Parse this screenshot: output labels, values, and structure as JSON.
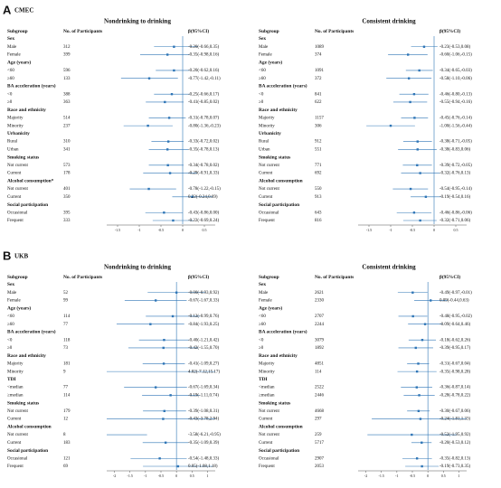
{
  "panels": [
    {
      "label": "A",
      "title": "CMEC"
    },
    {
      "label": "B",
      "title": "UKB"
    }
  ],
  "chart_data": [
    {
      "type": "forest",
      "title": "Nondrinking to drinking",
      "columns": [
        "Subgroup",
        "No. of Participants",
        "β(95%CI)"
      ],
      "color": "#2e75b6",
      "xlim": [
        -1.75,
        0.75
      ],
      "xticks": [
        -1.5,
        -1,
        -0.5,
        0,
        0.5
      ],
      "refline": 0,
      "groups": [
        {
          "name": "Sex",
          "categories": [
            "Male",
            "Female"
          ],
          "n": [
            312,
            399
          ],
          "estimate": [
            -0.2,
            -0.35
          ],
          "lower": [
            -0.66,
            -0.98
          ],
          "upper": [
            0.35,
            0.16
          ],
          "value_labels": [
            "-0.20(-0.66,0.35)",
            "-0.35(-0.98,0.16)"
          ]
        },
        {
          "name": "Age (years)",
          "categories": [
            "<60",
            "≥60"
          ],
          "n": [
            596,
            133
          ],
          "estimate": [
            -0.2,
            -0.77
          ],
          "lower": [
            -0.62,
            -1.42
          ],
          "upper": [
            0.16,
            -0.11
          ],
          "value_labels": [
            "-0.20(-0.62,0.16)",
            "-0.77(-1.42,-0.11)"
          ]
        },
        {
          "name": "BA acceleration (years)",
          "categories": [
            "<0",
            "≥0"
          ],
          "n": [
            388,
            363
          ],
          "estimate": [
            -0.25,
            -0.41
          ],
          "lower": [
            -0.66,
            -0.85
          ],
          "upper": [
            0.17,
            0.02
          ],
          "value_labels": [
            "-0.25(-0.66,0.17)",
            "-0.41(-0.85,0.02)"
          ]
        },
        {
          "name": "Race and ethnicity",
          "categories": [
            "Majority",
            "Minority"
          ],
          "n": [
            514,
            237
          ],
          "estimate": [
            -0.31,
            -0.8
          ],
          "lower": [
            -0.78,
            -1.36
          ],
          "upper": [
            0.07,
            -0.23
          ],
          "value_labels": [
            "-0.31(-0.78,0.07)",
            "-0.80(-1.36,-0.23)"
          ]
        },
        {
          "name": "Urbanicity",
          "categories": [
            "Rural",
            "Urban"
          ],
          "n": [
            310,
            341
          ],
          "estimate": [
            -0.33,
            -0.35
          ],
          "lower": [
            -0.72,
            -0.78
          ],
          "upper": [
            0.02,
            0.13
          ],
          "value_labels": [
            "-0.33(-0.72,0.02)",
            "-0.35(-0.78,0.13)"
          ]
        },
        {
          "name": "Smoking status",
          "categories": [
            "Not current",
            "Current"
          ],
          "n": [
            573,
            178
          ],
          "estimate": [
            -0.34,
            -0.29
          ],
          "lower": [
            -0.78,
            -0.91
          ],
          "upper": [
            0.02,
            0.33
          ],
          "value_labels": [
            "-0.34(-0.78,0.02)",
            "-0.29(-0.91,0.33)"
          ]
        },
        {
          "name": "Alcohol consumption*",
          "categories": [
            "Not current",
            "Current"
          ],
          "n": [
            401,
            350
          ],
          "estimate": [
            -0.78,
            0.22
          ],
          "lower": [
            -1.22,
            -0.24
          ],
          "upper": [
            -0.15,
            0.69
          ],
          "value_labels": [
            "-0.78(-1.22,-0.15)",
            "0.22(-0.24,0.69)"
          ]
        },
        {
          "name": "Social participation",
          "categories": [
            "Occasional",
            "Frequent"
          ],
          "n": [
            395,
            333
          ],
          "estimate": [
            -0.43,
            -0.22
          ],
          "lower": [
            -0.86,
            -0.69
          ],
          "upper": [
            0.0,
            0.24
          ],
          "value_labels": [
            "-0.43(-0.86,0.00)",
            "-0.22(-0.69,0.24)"
          ]
        }
      ]
    },
    {
      "type": "forest",
      "title": "Consistent drinking",
      "columns": [
        "Subgroup",
        "No. of Participants",
        "β(95%CI)"
      ],
      "color": "#2e75b6",
      "xlim": [
        -1.75,
        0.75
      ],
      "xticks": [
        -1.5,
        -1,
        -0.5,
        0,
        0.5
      ],
      "refline": 0,
      "groups": [
        {
          "name": "Sex",
          "categories": [
            "Male",
            "Female"
          ],
          "n": [
            1089,
            374
          ],
          "estimate": [
            -0.23,
            -0.6
          ],
          "lower": [
            -0.53,
            -1.06
          ],
          "upper": [
            0.08,
            -0.15
          ],
          "value_labels": [
            "-0.23(-0.53,0.08)",
            "-0.60(-1.06,-0.15)"
          ]
        },
        {
          "name": "Age (years)",
          "categories": [
            "<60",
            "≥60"
          ],
          "n": [
            1091,
            372
          ],
          "estimate": [
            -0.34,
            -0.58
          ],
          "lower": [
            -0.65,
            -1.1
          ],
          "upper": [
            -0.03,
            -0.06
          ],
          "value_labels": [
            "-0.34(-0.65,-0.03)",
            "-0.58(-1.10,-0.06)"
          ]
        },
        {
          "name": "BA acceleration (years)",
          "categories": [
            "<0",
            "≥0"
          ],
          "n": [
            841,
            622
          ],
          "estimate": [
            -0.46,
            -0.55
          ],
          "lower": [
            -0.8,
            -0.94
          ],
          "upper": [
            -0.13,
            -0.16
          ],
          "value_labels": [
            "-0.46(-0.80,-0.13)",
            "-0.55(-0.94,-0.16)"
          ]
        },
        {
          "name": "Race and ethnicity",
          "categories": [
            "Majority",
            "Minority"
          ],
          "n": [
            1157,
            306
          ],
          "estimate": [
            -0.45,
            -1.0
          ],
          "lower": [
            -0.76,
            -1.56
          ],
          "upper": [
            -0.14,
            -0.44
          ],
          "value_labels": [
            "-0.45(-0.76,-0.14)",
            "-1.00(-1.56,-0.44)"
          ]
        },
        {
          "name": "Urbanicity",
          "categories": [
            "Rural",
            "Urban"
          ],
          "n": [
            912,
            551
          ],
          "estimate": [
            -0.38,
            -0.38
          ],
          "lower": [
            -0.71,
            -0.83
          ],
          "upper": [
            -0.05,
            0.06
          ],
          "value_labels": [
            "-0.38(-0.71,-0.05)",
            "-0.38(-0.83,0.06)"
          ]
        },
        {
          "name": "Smoking status",
          "categories": [
            "Not current",
            "Current"
          ],
          "n": [
            771,
            692
          ],
          "estimate": [
            -0.39,
            -0.32
          ],
          "lower": [
            -0.72,
            -0.76
          ],
          "upper": [
            -0.05,
            0.13
          ],
          "value_labels": [
            "-0.39(-0.72,-0.05)",
            "-0.32(-0.76,0.13)"
          ]
        },
        {
          "name": "Alcohol consumption",
          "categories": [
            "Not current",
            "Current"
          ],
          "n": [
            550,
            913
          ],
          "estimate": [
            -0.54,
            -0.19
          ],
          "lower": [
            -0.95,
            -0.54
          ],
          "upper": [
            -0.14,
            0.16
          ],
          "value_labels": [
            "-0.54(-0.95,-0.14)",
            "-0.19(-0.54,0.16)"
          ]
        },
        {
          "name": "Social participation",
          "categories": [
            "Occasional",
            "Frequent"
          ],
          "n": [
            643,
            816
          ],
          "estimate": [
            -0.46,
            -0.32
          ],
          "lower": [
            -0.86,
            -0.71
          ],
          "upper": [
            -0.06,
            0.06
          ],
          "value_labels": [
            "-0.46(-0.86,-0.06)",
            "-0.32(-0.71,0.06)"
          ]
        }
      ]
    },
    {
      "type": "forest",
      "title": "Nondrinking to drinking",
      "columns": [
        "Subgroup",
        "No. of Participants",
        "β(95%CI)"
      ],
      "color": "#2e75b6",
      "xlim": [
        -2.25,
        1.25
      ],
      "xticks": [
        -2,
        -1.5,
        -1,
        -0.5,
        0,
        0.5,
        1
      ],
      "refline": 0,
      "groups": [
        {
          "name": "Sex",
          "categories": [
            "Male",
            "Female"
          ],
          "n": [
            52,
            99
          ],
          "estimate": [
            -0.0,
            -0.67
          ],
          "lower": [
            -0.93,
            -1.67
          ],
          "upper": [
            0.92,
            0.33
          ],
          "value_labels": [
            "-0.00(-0.93,0.92)",
            "-0.67(-1.67,0.33)"
          ]
        },
        {
          "name": "Age (years)",
          "categories": [
            "<60",
            "≥60"
          ],
          "n": [
            114,
            77
          ],
          "estimate": [
            -0.12,
            -0.84
          ],
          "lower": [
            -0.99,
            -1.93
          ],
          "upper": [
            0.76,
            0.25
          ],
          "value_labels": [
            "-0.12(-0.99,0.76)",
            "-0.84(-1.93,0.25)"
          ]
        },
        {
          "name": "BA acceleration (years)",
          "categories": [
            "<0",
            "≥0"
          ],
          "n": [
            118,
            73
          ],
          "estimate": [
            -0.4,
            -0.42
          ],
          "lower": [
            -1.21,
            -1.55
          ],
          "upper": [
            0.42,
            0.7
          ],
          "value_labels": [
            "-0.40(-1.21,0.42)",
            "-0.42(-1.55,0.70)"
          ]
        },
        {
          "name": "Race and ethnicity",
          "categories": [
            "Majority",
            "Minority"
          ],
          "n": [
            181,
            9
          ],
          "estimate": [
            -0.41,
            4.02
          ],
          "lower": [
            -1.09,
            -7.12
          ],
          "upper": [
            0.27,
            15.17
          ],
          "value_labels": [
            "-0.41(-1.09,0.27)",
            "4.02(-7.12,15.17)"
          ]
        },
        {
          "name": "TDI",
          "categories": [
            "<median",
            "≥median"
          ],
          "n": [
            77,
            114
          ],
          "estimate": [
            -0.67,
            -0.19
          ],
          "lower": [
            -1.69,
            -1.11
          ],
          "upper": [
            0.34,
            0.74
          ],
          "value_labels": [
            "-0.67(-1.69,0.34)",
            "-0.19(-1.11,0.74)"
          ]
        },
        {
          "name": "Smoking status",
          "categories": [
            "Not current",
            "Current"
          ],
          "n": [
            179,
            12
          ],
          "estimate": [
            -0.39,
            -0.43
          ],
          "lower": [
            -1.08,
            -3.78
          ],
          "upper": [
            0.31,
            2.94
          ],
          "value_labels": [
            "-0.39(-1.08,0.31)",
            "-0.43(-3.78,2.94)"
          ]
        },
        {
          "name": "Alcohol consumption",
          "categories": [
            "Not current",
            "Current"
          ],
          "n": [
            8,
            183
          ],
          "estimate": [
            -3.58,
            -0.35
          ],
          "lower": [
            -6.21,
            -1.09
          ],
          "upper": [
            -0.95,
            0.39
          ],
          "value_labels": [
            "-3.58(-6.21,-0.95)",
            "-0.35(-1.09,0.39)"
          ]
        },
        {
          "name": "Social participation",
          "categories": [
            "Occasional",
            "Frequent"
          ],
          "n": [
            121,
            69
          ],
          "estimate": [
            -0.54,
            0.05
          ],
          "lower": [
            -1.48,
            -1.08
          ],
          "upper": [
            0.33,
            1.18
          ],
          "value_labels": [
            "-0.54(-1.48,0.33)",
            "0.05(-1.08,1.18)"
          ]
        }
      ]
    },
    {
      "type": "forest",
      "title": "Consistent drinking",
      "columns": [
        "Subgroup",
        "No. of Participants",
        "β(95%CI)"
      ],
      "color": "#2e75b6",
      "xlim": [
        -2.25,
        1.25
      ],
      "xticks": [
        -2,
        -1.5,
        -1,
        -0.5,
        0,
        0.5,
        1
      ],
      "refline": 0,
      "groups": [
        {
          "name": "Sex",
          "categories": [
            "Male",
            "Female"
          ],
          "n": [
            2621,
            2330
          ],
          "estimate": [
            -0.49,
            0.09
          ],
          "lower": [
            -0.97,
            -0.44
          ],
          "upper": [
            -0.01,
            0.63
          ],
          "value_labels": [
            "-0.49(-0.97,-0.01)",
            "0.09(-0.44,0.63)"
          ]
        },
        {
          "name": "Age (years)",
          "categories": [
            "<60",
            "≥60"
          ],
          "n": [
            2707,
            2244
          ],
          "estimate": [
            -0.48,
            -0.09
          ],
          "lower": [
            -0.95,
            -0.64
          ],
          "upper": [
            -0.02,
            0.46
          ],
          "value_labels": [
            "-0.48(-0.95,-0.02)",
            "-0.09(-0.64,0.46)"
          ]
        },
        {
          "name": "BA acceleration (years)",
          "categories": [
            "<0",
            "≥0"
          ],
          "n": [
            3079,
            1892
          ],
          "estimate": [
            -0.18,
            -0.39
          ],
          "lower": [
            -0.62,
            -0.95
          ],
          "upper": [
            0.26,
            0.17
          ],
          "value_labels": [
            "-0.18(-0.62,0.26)",
            "-0.39(-0.95,0.17)"
          ]
        },
        {
          "name": "Race and ethnicity",
          "categories": [
            "Majority",
            "Minority"
          ],
          "n": [
            4851,
            114
          ],
          "estimate": [
            -0.31,
            -0.35
          ],
          "lower": [
            -0.67,
            -0.98
          ],
          "upper": [
            0.04,
            0.28
          ],
          "value_labels": [
            "-0.31(-0.67,0.04)",
            "-0.35(-0.98,0.28)"
          ]
        },
        {
          "name": "TDI",
          "categories": [
            "<median",
            "≥median"
          ],
          "n": [
            2522,
            2446
          ],
          "estimate": [
            -0.36,
            -0.28
          ],
          "lower": [
            -0.87,
            -0.78
          ],
          "upper": [
            0.14,
            0.22
          ],
          "value_labels": [
            "-0.36(-0.87,0.14)",
            "-0.28(-0.78,0.22)"
          ]
        },
        {
          "name": "Smoking status",
          "categories": [
            "Not current",
            "Current"
          ],
          "n": [
            4668,
            297
          ],
          "estimate": [
            -0.3,
            -0.24
          ],
          "lower": [
            -0.67,
            -1.81
          ],
          "upper": [
            0.06,
            1.33
          ],
          "value_labels": [
            "-0.30(-0.67,0.06)",
            "-0.24(-1.81,1.33)"
          ]
        },
        {
          "name": "Alcohol consumption",
          "categories": [
            "Not current",
            "Current"
          ],
          "n": [
            259,
            5717
          ],
          "estimate": [
            -0.52,
            -0.2
          ],
          "lower": [
            -1.95,
            -0.53
          ],
          "upper": [
            0.92,
            0.12
          ],
          "value_labels": [
            "-0.52(-1.95,0.92)",
            "-0.20(-0.53,0.12)"
          ]
        },
        {
          "name": "Social participation",
          "categories": [
            "Occasional",
            "Frequent"
          ],
          "n": [
            2907,
            2053
          ],
          "estimate": [
            -0.35,
            -0.19
          ],
          "lower": [
            -0.82,
            -0.73
          ],
          "upper": [
            0.13,
            0.35
          ],
          "value_labels": [
            "-0.35(-0.82,0.13)",
            "-0.19(-0.73,0.35)"
          ]
        }
      ]
    }
  ]
}
